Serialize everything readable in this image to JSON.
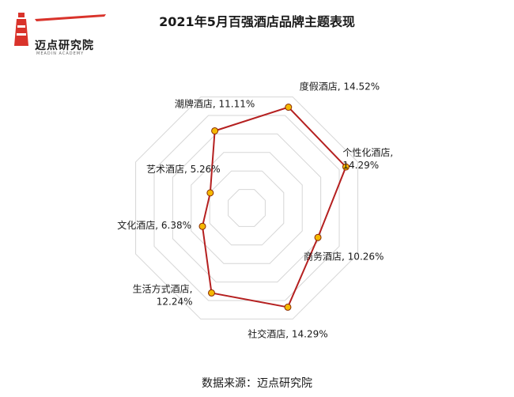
{
  "logo": {
    "text": "迈点研究院",
    "subtext": "MEADIN ACADEMY"
  },
  "title": "2021年5月百强酒店品牌主题表现",
  "source": "数据来源：迈点研究院",
  "colors": {
    "line": "#b52020",
    "marker_fill": "#f5b800",
    "grid": "#d6d6d6",
    "logo_red": "#d9332b"
  },
  "chart_data": {
    "type": "radar",
    "title": "2021年5月百强酒店品牌主题表现",
    "categories": [
      "潮牌酒店",
      "度假酒店",
      "个性化酒店",
      "商务酒店",
      "社交酒店",
      "生活方式酒店",
      "文化酒店",
      "艺术酒店"
    ],
    "values": [
      11.11,
      14.52,
      14.29,
      10.26,
      14.29,
      12.24,
      6.38,
      5.26
    ],
    "unit": "%",
    "labels": [
      [
        "潮牌酒店, 11.11%"
      ],
      [
        "度假酒店, 14.52%"
      ],
      [
        "个性化酒店,",
        "14.29%"
      ],
      [
        "商务酒店, 10.26%"
      ],
      [
        "社交酒店, 14.29%"
      ],
      [
        "生活方式酒店,",
        "12.24%"
      ],
      [
        "文化酒店, 6.38%"
      ],
      [
        "艺术酒店, 5.26%"
      ]
    ],
    "grid": true,
    "legend": "none"
  }
}
